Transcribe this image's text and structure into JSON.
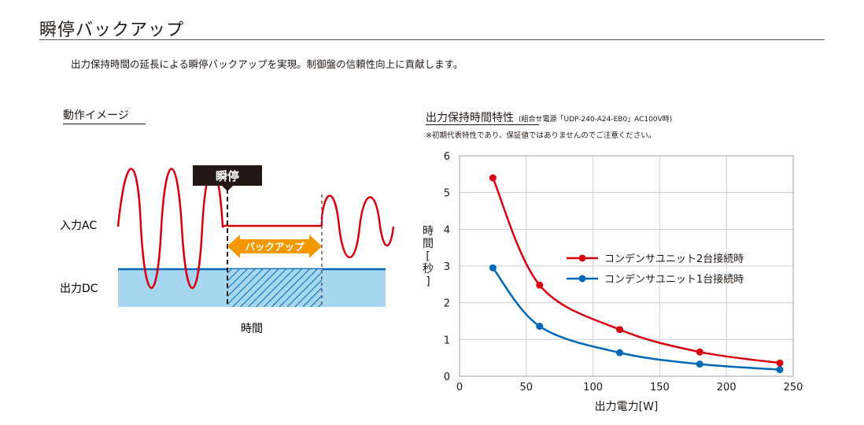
{
  "header": {
    "title": "瞬停バックアップ",
    "description": "出力保持時間の延長による瞬停バックアップを実現。制御盤の信頼性向上に貢献します。"
  },
  "operation": {
    "heading": "動作イメージ",
    "blackout_label": "瞬停",
    "input_label": "入力AC",
    "output_label": "出力DC",
    "backup_label": "バックアップ",
    "time_label": "時間",
    "colors": {
      "input_wave": "#d7000f",
      "output_fill": "#a7d7f0",
      "output_line": "#0068b7",
      "backup_arrow": "#f39800",
      "blackout_box": "#231815"
    }
  },
  "chart": {
    "heading": "出力保持時間特性",
    "subheading": "(組合せ電源「UDP-240-A24-EB0」AC100V時)",
    "note": "※初期代表特性であり、保証値ではありませんのでご注意ください。"
  },
  "chart_data": {
    "type": "line",
    "xlabel": "出力電力[W]",
    "ylabel": "時間[秒]",
    "xlim": [
      0,
      250
    ],
    "ylim": [
      0,
      6
    ],
    "xticks": [
      "0",
      "50",
      "100",
      "150",
      "200",
      "250"
    ],
    "yticks": [
      "0",
      "1",
      "2",
      "3",
      "4",
      "5",
      "6"
    ],
    "grid": true,
    "legend_position": "right",
    "series": [
      {
        "name": "コンデンサユニット2台接続時",
        "color": "#d7000f",
        "x": [
          25,
          60,
          120,
          180,
          240
        ],
        "y": [
          5.4,
          2.48,
          1.27,
          0.66,
          0.36
        ]
      },
      {
        "name": "コンデンサユニット1台接続時",
        "color": "#0068b7",
        "x": [
          25,
          60,
          120,
          180,
          240
        ],
        "y": [
          2.95,
          1.36,
          0.64,
          0.33,
          0.18
        ]
      }
    ]
  }
}
